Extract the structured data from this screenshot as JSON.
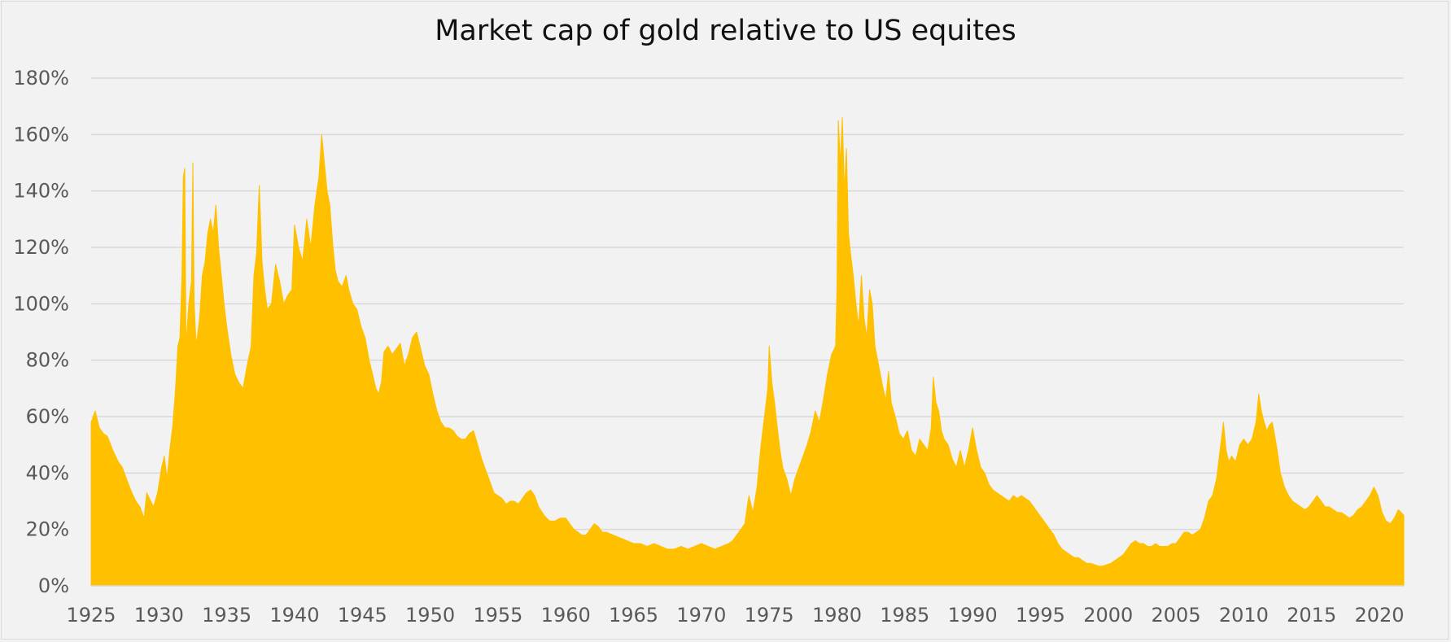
{
  "chart_data": {
    "type": "area",
    "title": "Market cap of gold relative to US equites",
    "xlabel": "",
    "ylabel": "",
    "xlim": [
      1925,
      2021.8
    ],
    "ylim": [
      0,
      180
    ],
    "x_ticks": [
      "1925",
      "1930",
      "1935",
      "1940",
      "1945",
      "1950",
      "1955",
      "1960",
      "1965",
      "1970",
      "1975",
      "1980",
      "1985",
      "1990",
      "1995",
      "2000",
      "2005",
      "2010",
      "2015",
      "2020"
    ],
    "y_ticks": [
      "0%",
      "20%",
      "40%",
      "60%",
      "80%",
      "100%",
      "120%",
      "140%",
      "160%",
      "180%"
    ],
    "y_unit": "%",
    "grid": true,
    "legend": "none",
    "fill_color": "#ffc000",
    "points": [
      [
        1925.0,
        58
      ],
      [
        1925.3,
        62
      ],
      [
        1925.6,
        56
      ],
      [
        1925.9,
        54
      ],
      [
        1926.2,
        53
      ],
      [
        1926.6,
        48
      ],
      [
        1927.0,
        44
      ],
      [
        1927.3,
        42
      ],
      [
        1927.6,
        38
      ],
      [
        1928.0,
        33
      ],
      [
        1928.3,
        30
      ],
      [
        1928.6,
        28
      ],
      [
        1928.9,
        24
      ],
      [
        1929.1,
        33
      ],
      [
        1929.4,
        30
      ],
      [
        1929.6,
        28
      ],
      [
        1929.9,
        33
      ],
      [
        1930.2,
        42
      ],
      [
        1930.4,
        46
      ],
      [
        1930.6,
        38
      ],
      [
        1930.8,
        48
      ],
      [
        1931.0,
        56
      ],
      [
        1931.2,
        68
      ],
      [
        1931.4,
        85
      ],
      [
        1931.55,
        88
      ],
      [
        1931.7,
        110
      ],
      [
        1931.8,
        145
      ],
      [
        1931.9,
        148
      ],
      [
        1932.0,
        85
      ],
      [
        1932.2,
        100
      ],
      [
        1932.4,
        108
      ],
      [
        1932.5,
        150
      ],
      [
        1932.6,
        100
      ],
      [
        1932.75,
        85
      ],
      [
        1933.0,
        95
      ],
      [
        1933.2,
        110
      ],
      [
        1933.4,
        115
      ],
      [
        1933.6,
        125
      ],
      [
        1933.8,
        130
      ],
      [
        1934.0,
        125
      ],
      [
        1934.2,
        135
      ],
      [
        1934.4,
        120
      ],
      [
        1934.6,
        110
      ],
      [
        1934.8,
        100
      ],
      [
        1935.0,
        92
      ],
      [
        1935.3,
        82
      ],
      [
        1935.6,
        75
      ],
      [
        1935.9,
        72
      ],
      [
        1936.2,
        70
      ],
      [
        1936.5,
        78
      ],
      [
        1936.8,
        85
      ],
      [
        1937.0,
        110
      ],
      [
        1937.2,
        118
      ],
      [
        1937.4,
        142
      ],
      [
        1937.6,
        115
      ],
      [
        1937.8,
        105
      ],
      [
        1938.0,
        98
      ],
      [
        1938.3,
        100
      ],
      [
        1938.6,
        114
      ],
      [
        1938.9,
        108
      ],
      [
        1939.2,
        100
      ],
      [
        1939.5,
        103
      ],
      [
        1939.8,
        105
      ],
      [
        1940.0,
        128
      ],
      [
        1940.3,
        120
      ],
      [
        1940.6,
        115
      ],
      [
        1940.9,
        130
      ],
      [
        1941.2,
        120
      ],
      [
        1941.5,
        135
      ],
      [
        1941.8,
        145
      ],
      [
        1942.0,
        160
      ],
      [
        1942.2,
        150
      ],
      [
        1942.4,
        140
      ],
      [
        1942.6,
        135
      ],
      [
        1942.8,
        122
      ],
      [
        1943.0,
        112
      ],
      [
        1943.2,
        108
      ],
      [
        1943.5,
        106
      ],
      [
        1943.8,
        110
      ],
      [
        1944.0,
        105
      ],
      [
        1944.3,
        100
      ],
      [
        1944.6,
        98
      ],
      [
        1944.9,
        92
      ],
      [
        1945.2,
        88
      ],
      [
        1945.5,
        80
      ],
      [
        1945.8,
        74
      ],
      [
        1946.0,
        70
      ],
      [
        1946.2,
        68
      ],
      [
        1946.4,
        72
      ],
      [
        1946.6,
        83
      ],
      [
        1946.9,
        85
      ],
      [
        1947.2,
        82
      ],
      [
        1947.5,
        84
      ],
      [
        1947.8,
        86
      ],
      [
        1948.1,
        78
      ],
      [
        1948.4,
        82
      ],
      [
        1948.7,
        88
      ],
      [
        1949.0,
        90
      ],
      [
        1949.3,
        84
      ],
      [
        1949.6,
        78
      ],
      [
        1949.9,
        75
      ],
      [
        1950.2,
        68
      ],
      [
        1950.5,
        62
      ],
      [
        1950.8,
        58
      ],
      [
        1951.1,
        56
      ],
      [
        1951.4,
        56
      ],
      [
        1951.7,
        55
      ],
      [
        1952.0,
        53
      ],
      [
        1952.3,
        52
      ],
      [
        1952.6,
        52
      ],
      [
        1952.9,
        54
      ],
      [
        1953.2,
        55
      ],
      [
        1953.5,
        50
      ],
      [
        1953.8,
        45
      ],
      [
        1954.1,
        41
      ],
      [
        1954.4,
        37
      ],
      [
        1954.7,
        33
      ],
      [
        1955.0,
        32
      ],
      [
        1955.3,
        31
      ],
      [
        1955.6,
        29
      ],
      [
        1955.9,
        30
      ],
      [
        1956.2,
        30
      ],
      [
        1956.5,
        29
      ],
      [
        1956.8,
        31
      ],
      [
        1957.1,
        33
      ],
      [
        1957.4,
        34
      ],
      [
        1957.7,
        32
      ],
      [
        1958.0,
        28
      ],
      [
        1958.4,
        25
      ],
      [
        1958.8,
        23
      ],
      [
        1959.2,
        23
      ],
      [
        1959.6,
        24
      ],
      [
        1960.0,
        24
      ],
      [
        1960.3,
        22
      ],
      [
        1960.6,
        20
      ],
      [
        1960.9,
        19
      ],
      [
        1961.2,
        18
      ],
      [
        1961.5,
        18
      ],
      [
        1961.8,
        20
      ],
      [
        1962.1,
        22
      ],
      [
        1962.4,
        21
      ],
      [
        1962.7,
        19
      ],
      [
        1963.0,
        19
      ],
      [
        1963.5,
        18
      ],
      [
        1964.0,
        17
      ],
      [
        1964.5,
        16
      ],
      [
        1965.0,
        15
      ],
      [
        1965.5,
        15
      ],
      [
        1966.0,
        14
      ],
      [
        1966.5,
        15
      ],
      [
        1967.0,
        14
      ],
      [
        1967.5,
        13
      ],
      [
        1968.0,
        13
      ],
      [
        1968.5,
        14
      ],
      [
        1969.0,
        13
      ],
      [
        1969.5,
        14
      ],
      [
        1970.0,
        15
      ],
      [
        1970.5,
        14
      ],
      [
        1971.0,
        13
      ],
      [
        1971.5,
        14
      ],
      [
        1972.0,
        15
      ],
      [
        1972.3,
        16
      ],
      [
        1972.6,
        18
      ],
      [
        1972.9,
        20
      ],
      [
        1973.2,
        22
      ],
      [
        1973.5,
        32
      ],
      [
        1973.8,
        26
      ],
      [
        1974.1,
        35
      ],
      [
        1974.4,
        50
      ],
      [
        1974.7,
        62
      ],
      [
        1974.9,
        70
      ],
      [
        1975.0,
        85
      ],
      [
        1975.2,
        72
      ],
      [
        1975.4,
        65
      ],
      [
        1975.6,
        56
      ],
      [
        1975.8,
        48
      ],
      [
        1976.0,
        42
      ],
      [
        1976.3,
        38
      ],
      [
        1976.6,
        32
      ],
      [
        1976.9,
        38
      ],
      [
        1977.2,
        42
      ],
      [
        1977.5,
        46
      ],
      [
        1977.8,
        50
      ],
      [
        1978.1,
        55
      ],
      [
        1978.4,
        62
      ],
      [
        1978.7,
        58
      ],
      [
        1979.0,
        66
      ],
      [
        1979.3,
        75
      ],
      [
        1979.6,
        82
      ],
      [
        1979.9,
        85
      ],
      [
        1980.0,
        106
      ],
      [
        1980.1,
        165
      ],
      [
        1980.25,
        150
      ],
      [
        1980.4,
        166
      ],
      [
        1980.55,
        140
      ],
      [
        1980.7,
        155
      ],
      [
        1980.85,
        125
      ],
      [
        1981.0,
        118
      ],
      [
        1981.2,
        110
      ],
      [
        1981.4,
        100
      ],
      [
        1981.6,
        92
      ],
      [
        1981.8,
        110
      ],
      [
        1982.0,
        95
      ],
      [
        1982.2,
        88
      ],
      [
        1982.4,
        105
      ],
      [
        1982.6,
        100
      ],
      [
        1982.8,
        85
      ],
      [
        1983.0,
        80
      ],
      [
        1983.2,
        75
      ],
      [
        1983.4,
        70
      ],
      [
        1983.6,
        66
      ],
      [
        1983.8,
        76
      ],
      [
        1984.0,
        65
      ],
      [
        1984.3,
        60
      ],
      [
        1984.6,
        54
      ],
      [
        1984.9,
        52
      ],
      [
        1985.2,
        55
      ],
      [
        1985.5,
        48
      ],
      [
        1985.8,
        46
      ],
      [
        1986.1,
        52
      ],
      [
        1986.4,
        50
      ],
      [
        1986.7,
        48
      ],
      [
        1986.95,
        56
      ],
      [
        1987.1,
        74
      ],
      [
        1987.3,
        65
      ],
      [
        1987.5,
        62
      ],
      [
        1987.7,
        55
      ],
      [
        1987.9,
        52
      ],
      [
        1988.2,
        50
      ],
      [
        1988.5,
        45
      ],
      [
        1988.8,
        42
      ],
      [
        1989.1,
        48
      ],
      [
        1989.4,
        42
      ],
      [
        1989.7,
        48
      ],
      [
        1990.0,
        56
      ],
      [
        1990.3,
        48
      ],
      [
        1990.6,
        42
      ],
      [
        1990.9,
        40
      ],
      [
        1991.2,
        36
      ],
      [
        1991.5,
        34
      ],
      [
        1991.8,
        33
      ],
      [
        1992.1,
        32
      ],
      [
        1992.4,
        31
      ],
      [
        1992.7,
        30
      ],
      [
        1993.0,
        32
      ],
      [
        1993.3,
        31
      ],
      [
        1993.6,
        32
      ],
      [
        1993.9,
        31
      ],
      [
        1994.2,
        30
      ],
      [
        1994.5,
        28
      ],
      [
        1994.8,
        26
      ],
      [
        1995.1,
        24
      ],
      [
        1995.4,
        22
      ],
      [
        1995.7,
        20
      ],
      [
        1996.0,
        18
      ],
      [
        1996.3,
        15
      ],
      [
        1996.6,
        13
      ],
      [
        1996.9,
        12
      ],
      [
        1997.2,
        11
      ],
      [
        1997.5,
        10
      ],
      [
        1997.8,
        10
      ],
      [
        1998.1,
        9
      ],
      [
        1998.4,
        8
      ],
      [
        1998.7,
        8
      ],
      [
        1999.0,
        7.5
      ],
      [
        1999.3,
        7
      ],
      [
        1999.6,
        7
      ],
      [
        1999.9,
        7.5
      ],
      [
        2000.2,
        8
      ],
      [
        2000.5,
        9
      ],
      [
        2000.8,
        10
      ],
      [
        2001.1,
        11
      ],
      [
        2001.4,
        13
      ],
      [
        2001.7,
        15
      ],
      [
        2002.0,
        16
      ],
      [
        2002.3,
        15
      ],
      [
        2002.6,
        15
      ],
      [
        2002.9,
        14
      ],
      [
        2003.2,
        14
      ],
      [
        2003.5,
        15
      ],
      [
        2003.8,
        14
      ],
      [
        2004.1,
        14
      ],
      [
        2004.4,
        14
      ],
      [
        2004.7,
        15
      ],
      [
        2005.0,
        15
      ],
      [
        2005.3,
        17
      ],
      [
        2005.6,
        19
      ],
      [
        2005.9,
        19
      ],
      [
        2006.2,
        18
      ],
      [
        2006.5,
        19
      ],
      [
        2006.8,
        20
      ],
      [
        2007.1,
        24
      ],
      [
        2007.4,
        30
      ],
      [
        2007.7,
        32
      ],
      [
        2008.0,
        38
      ],
      [
        2008.3,
        50
      ],
      [
        2008.5,
        58
      ],
      [
        2008.7,
        48
      ],
      [
        2008.9,
        44
      ],
      [
        2009.1,
        46
      ],
      [
        2009.4,
        44
      ],
      [
        2009.7,
        50
      ],
      [
        2010.0,
        52
      ],
      [
        2010.3,
        50
      ],
      [
        2010.6,
        52
      ],
      [
        2010.9,
        58
      ],
      [
        2011.1,
        68
      ],
      [
        2011.3,
        62
      ],
      [
        2011.5,
        58
      ],
      [
        2011.7,
        55
      ],
      [
        2011.9,
        57
      ],
      [
        2012.1,
        58
      ],
      [
        2012.4,
        50
      ],
      [
        2012.7,
        40
      ],
      [
        2013.0,
        35
      ],
      [
        2013.3,
        32
      ],
      [
        2013.6,
        30
      ],
      [
        2013.9,
        29
      ],
      [
        2014.2,
        28
      ],
      [
        2014.5,
        27
      ],
      [
        2014.8,
        28
      ],
      [
        2015.1,
        30
      ],
      [
        2015.4,
        32
      ],
      [
        2015.7,
        30
      ],
      [
        2016.0,
        28
      ],
      [
        2016.3,
        28
      ],
      [
        2016.6,
        27
      ],
      [
        2016.9,
        26
      ],
      [
        2017.2,
        26
      ],
      [
        2017.5,
        25
      ],
      [
        2017.8,
        24
      ],
      [
        2018.1,
        25
      ],
      [
        2018.4,
        27
      ],
      [
        2018.7,
        28
      ],
      [
        2019.0,
        30
      ],
      [
        2019.3,
        32
      ],
      [
        2019.6,
        35
      ],
      [
        2019.9,
        32
      ],
      [
        2020.2,
        26
      ],
      [
        2020.5,
        23
      ],
      [
        2020.8,
        22
      ],
      [
        2021.1,
        24
      ],
      [
        2021.4,
        27
      ],
      [
        2021.6,
        26
      ],
      [
        2021.8,
        25
      ]
    ]
  }
}
